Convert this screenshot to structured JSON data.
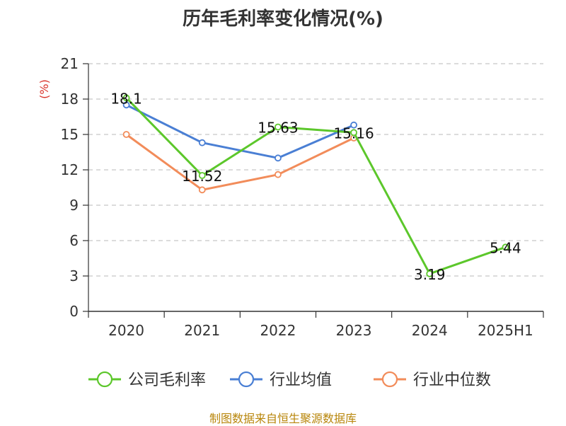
{
  "title": "历年毛利率变化情况(%)",
  "source": "制图数据来自恒生聚源数据库",
  "chart_data": {
    "type": "line",
    "title": "历年毛利率变化情况(%)",
    "ylabel": "(%)",
    "ylabel_color": "#d9342b",
    "categories": [
      "2020",
      "2021",
      "2022",
      "2023",
      "2024",
      "2025H1"
    ],
    "ylim": [
      0,
      21
    ],
    "yticks": [
      0,
      3,
      6,
      9,
      12,
      15,
      18,
      21
    ],
    "grid": true,
    "legend_position": "bottom",
    "series": [
      {
        "name": "公司毛利率",
        "color": "#5cc72b",
        "values": [
          18.1,
          11.52,
          15.63,
          15.16,
          3.19,
          5.44
        ],
        "labels": [
          "18.1",
          "11.52",
          "15.63",
          "15.16",
          "3.19",
          "5.44"
        ]
      },
      {
        "name": "行业均值",
        "color": "#4a7fd4",
        "values": [
          17.5,
          14.3,
          13.0,
          15.8,
          null,
          null
        ]
      },
      {
        "name": "行业中位数",
        "color": "#f28c5a",
        "values": [
          15.0,
          10.3,
          11.6,
          14.7,
          null,
          null
        ]
      }
    ]
  }
}
